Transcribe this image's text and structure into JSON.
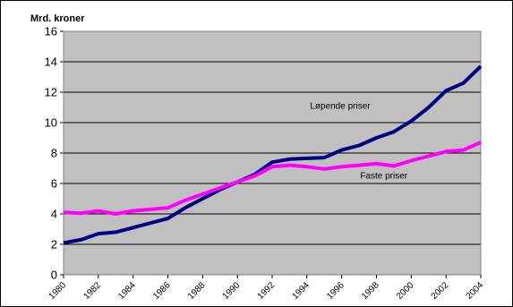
{
  "chart_data": {
    "type": "line",
    "ylabel": "Mrd. kroner",
    "ylim": [
      0,
      16
    ],
    "yticks": [
      "0",
      "2",
      "4",
      "6",
      "8",
      "10",
      "12",
      "14",
      "16"
    ],
    "x": [
      1980,
      1981,
      1982,
      1983,
      1984,
      1985,
      1986,
      1987,
      1988,
      1989,
      1990,
      1991,
      1992,
      1993,
      1994,
      1995,
      1996,
      1997,
      1998,
      1999,
      2000,
      2001,
      2002,
      2003,
      2004
    ],
    "xticks": [
      "1980",
      "1982",
      "1984",
      "1986",
      "1988",
      "1990",
      "1992",
      "1994",
      "1996",
      "1998",
      "2000",
      "2002",
      "2004"
    ],
    "grid": true,
    "background": "#c0c0c0",
    "series": [
      {
        "name": "Løpende priser",
        "color": "#000080",
        "values": [
          2.1,
          2.3,
          2.7,
          2.8,
          3.1,
          3.4,
          3.7,
          4.4,
          5.0,
          5.6,
          6.1,
          6.6,
          7.4,
          7.6,
          7.65,
          7.7,
          8.2,
          8.5,
          9.0,
          9.4,
          10.1,
          11.0,
          12.1,
          12.6,
          13.7
        ]
      },
      {
        "name": "Faste priser",
        "color": "#ff00ff",
        "values": [
          4.1,
          4.05,
          4.2,
          4.0,
          4.2,
          4.3,
          4.4,
          4.9,
          5.3,
          5.7,
          6.1,
          6.5,
          7.1,
          7.2,
          7.1,
          6.95,
          7.1,
          7.2,
          7.3,
          7.15,
          7.5,
          7.8,
          8.1,
          8.2,
          8.7
        ]
      }
    ]
  }
}
